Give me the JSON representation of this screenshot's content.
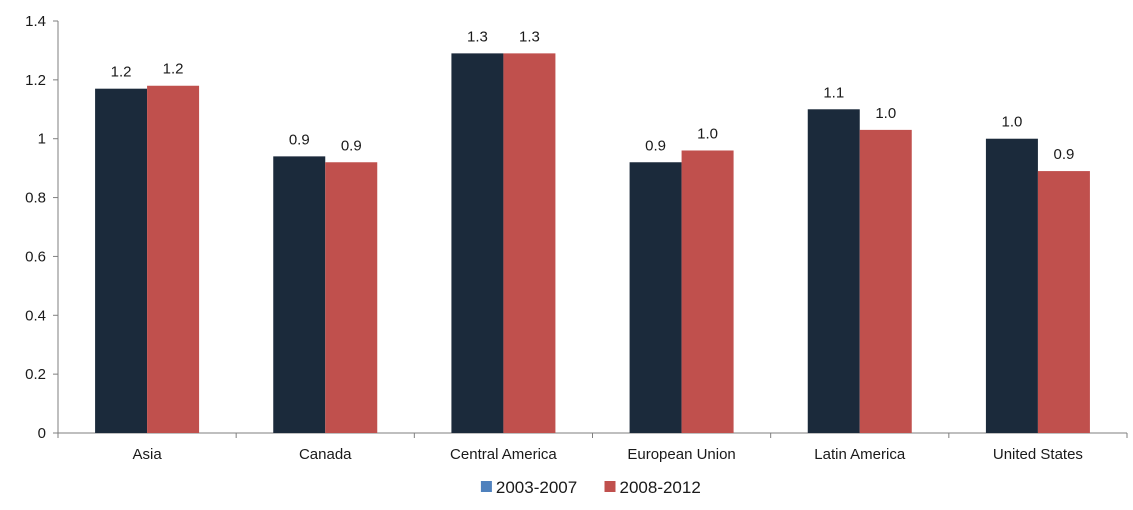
{
  "chart_data": {
    "type": "bar",
    "categories": [
      "Asia",
      "Canada",
      "Central America",
      "European Union",
      "Latin America",
      "United States"
    ],
    "series": [
      {
        "name": "2003-2007",
        "color": "#1b2a3b",
        "legend_color": "#4f81bd",
        "values": [
          1.17,
          0.94,
          1.29,
          0.92,
          1.1,
          1.0
        ],
        "labels": [
          "1.2",
          "0.9",
          "1.3",
          "0.9",
          "1.1",
          "1.0"
        ]
      },
      {
        "name": "2008-2012",
        "color": "#c0504d",
        "legend_color": "#c0504d",
        "values": [
          1.18,
          0.92,
          1.29,
          0.96,
          1.03,
          0.89
        ],
        "labels": [
          "1.2",
          "0.9",
          "1.3",
          "1.0",
          "1.0",
          "0.9"
        ]
      }
    ],
    "ylim": [
      0,
      1.4
    ],
    "yticks": [
      "0",
      "0.2",
      "0.4",
      "0.6",
      "0.8",
      "1",
      "1.2",
      "1.4"
    ],
    "ytick_values": [
      0,
      0.2,
      0.4,
      0.6,
      0.8,
      1.0,
      1.2,
      1.4
    ],
    "grid": false,
    "legend_position": "bottom-center"
  }
}
